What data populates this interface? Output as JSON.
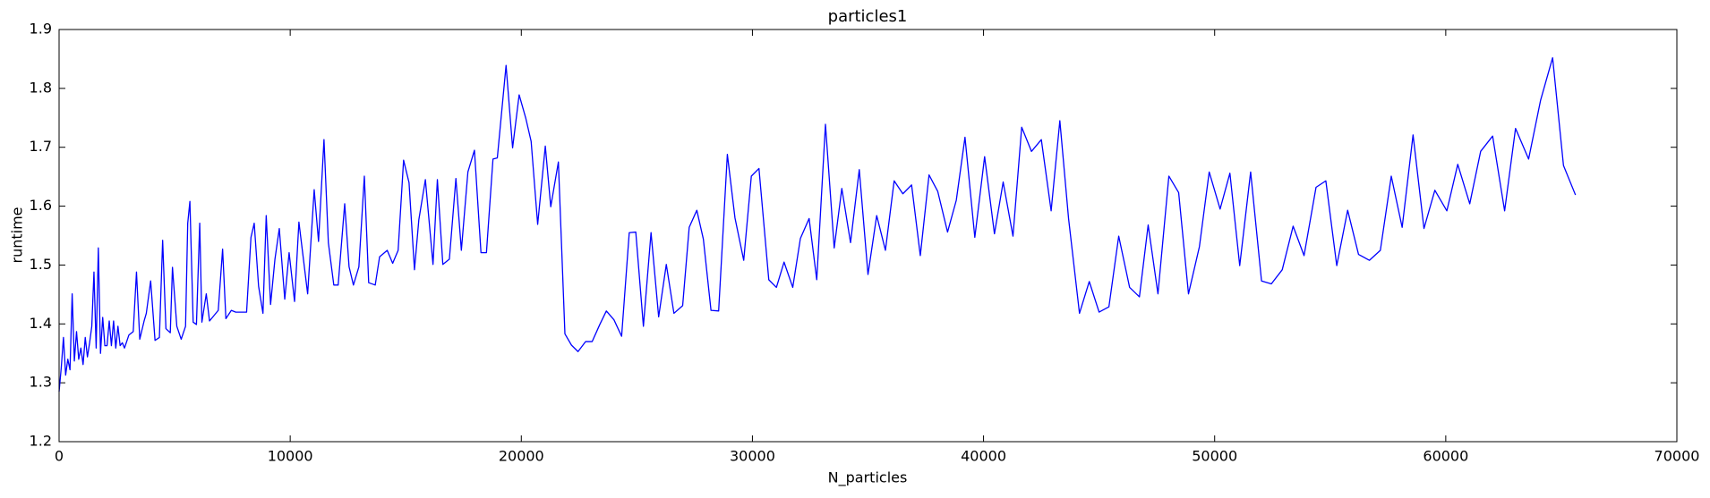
{
  "chart_data": {
    "type": "line",
    "title": "particles1",
    "xlabel": "N_particles",
    "ylabel": "runtime",
    "color": "#0000ff",
    "xlim": [
      0,
      70000
    ],
    "ylim": [
      1.2,
      1.9
    ],
    "xticks": [
      0,
      10000,
      20000,
      30000,
      40000,
      50000,
      60000,
      70000
    ],
    "yticks": [
      1.2,
      1.3,
      1.4,
      1.5,
      1.6,
      1.7,
      1.8,
      1.9
    ],
    "grid": false,
    "x": [
      0,
      94,
      189,
      283,
      377,
      472,
      566,
      660,
      755,
      849,
      943,
      1038,
      1132,
      1226,
      1321,
      1415,
      1509,
      1604,
      1698,
      1792,
      1887,
      1981,
      2075,
      2170,
      2264,
      2358,
      2453,
      2547,
      2641,
      2736,
      2830,
      3019,
      3208,
      3349,
      3491,
      3679,
      3774,
      3962,
      4151,
      4340,
      4481,
      4623,
      4811,
      4906,
      5094,
      5283,
      5472,
      5566,
      5660,
      5802,
      5943,
      6085,
      6179,
      6368,
      6509,
      6887,
      7075,
      7217,
      7453,
      7642,
      7830,
      8113,
      8302,
      8443,
      8632,
      8821,
      8962,
      9151,
      9340,
      9528,
      9764,
      9953,
      10189,
      10377,
      10755,
      11038,
      11226,
      11462,
      11651,
      11887,
      12075,
      12358,
      12547,
      12736,
      12972,
      13208,
      13396,
      13679,
      13868,
      14198,
      14434,
      14670,
      14906,
      15142,
      15377,
      15566,
      15849,
      16179,
      16368,
      16604,
      16887,
      17170,
      17406,
      17689,
      17972,
      18255,
      18491,
      18774,
      18962,
      19340,
      19623,
      19906,
      20189,
      20425,
      20708,
      21038,
      21274,
      21604,
      21887,
      22170,
      22453,
      22783,
      23066,
      23396,
      23679,
      24009,
      24340,
      24670,
      24953,
      25283,
      25613,
      25943,
      26274,
      26604,
      26981,
      27264,
      27594,
      27877,
      28208,
      28538,
      28915,
      29245,
      29623,
      29953,
      30283,
      30708,
      31038,
      31368,
      31745,
      32075,
      32453,
      32783,
      33160,
      33538,
      33868,
      34245,
      34623,
      35000,
      35377,
      35755,
      36132,
      36509,
      36887,
      37264,
      37642,
      38019,
      38443,
      38821,
      39198,
      39623,
      40047,
      40472,
      40849,
      41274,
      41651,
      42075,
      42500,
      42925,
      43302,
      43679,
      44151,
      44575,
      45000,
      45425,
      45849,
      46321,
      46745,
      47123,
      47547,
      48019,
      48443,
      48868,
      49340,
      49764,
      50236,
      50660,
      51085,
      51557,
      52028,
      52453,
      52925,
      53396,
      53868,
      54387,
      54811,
      55283,
      55755,
      56226,
      56698,
      57170,
      57642,
      58113,
      58585,
      59057,
      59528,
      60047,
      60519,
      61038,
      61509,
      62028,
      62547,
      63019,
      63585,
      64104,
      64623,
      65094,
      65613
    ],
    "values": [
      1.285,
      1.326,
      1.377,
      1.313,
      1.34,
      1.322,
      1.451,
      1.337,
      1.387,
      1.34,
      1.359,
      1.331,
      1.377,
      1.344,
      1.368,
      1.396,
      1.488,
      1.359,
      1.529,
      1.35,
      1.411,
      1.363,
      1.363,
      1.405,
      1.363,
      1.405,
      1.359,
      1.396,
      1.363,
      1.368,
      1.359,
      1.381,
      1.387,
      1.488,
      1.374,
      1.405,
      1.418,
      1.473,
      1.372,
      1.377,
      1.542,
      1.392,
      1.385,
      1.496,
      1.396,
      1.374,
      1.396,
      1.571,
      1.608,
      1.403,
      1.399,
      1.571,
      1.403,
      1.451,
      1.405,
      1.423,
      1.527,
      1.409,
      1.423,
      1.42,
      1.42,
      1.42,
      1.547,
      1.571,
      1.464,
      1.418,
      1.584,
      1.433,
      1.51,
      1.562,
      1.442,
      1.521,
      1.438,
      1.573,
      1.451,
      1.628,
      1.54,
      1.713,
      1.538,
      1.466,
      1.466,
      1.604,
      1.497,
      1.466,
      1.497,
      1.651,
      1.47,
      1.466,
      1.514,
      1.525,
      1.503,
      1.525,
      1.678,
      1.64,
      1.492,
      1.577,
      1.645,
      1.501,
      1.645,
      1.501,
      1.51,
      1.647,
      1.525,
      1.658,
      1.695,
      1.521,
      1.521,
      1.68,
      1.682,
      1.839,
      1.699,
      1.789,
      1.75,
      1.71,
      1.569,
      1.702,
      1.599,
      1.675,
      1.383,
      1.364,
      1.353,
      1.37,
      1.37,
      1.399,
      1.422,
      1.407,
      1.379,
      1.555,
      1.556,
      1.396,
      1.555,
      1.412,
      1.501,
      1.418,
      1.431,
      1.564,
      1.593,
      1.544,
      1.423,
      1.422,
      1.688,
      1.58,
      1.508,
      1.651,
      1.664,
      1.475,
      1.462,
      1.505,
      1.462,
      1.545,
      1.579,
      1.475,
      1.739,
      1.529,
      1.63,
      1.538,
      1.662,
      1.484,
      1.584,
      1.525,
      1.643,
      1.621,
      1.636,
      1.516,
      1.653,
      1.625,
      1.556,
      1.61,
      1.717,
      1.547,
      1.684,
      1.553,
      1.641,
      1.549,
      1.734,
      1.693,
      1.713,
      1.592,
      1.745,
      1.579,
      1.418,
      1.472,
      1.42,
      1.429,
      1.549,
      1.462,
      1.446,
      1.568,
      1.451,
      1.651,
      1.623,
      1.451,
      1.531,
      1.658,
      1.595,
      1.656,
      1.499,
      1.658,
      1.473,
      1.468,
      1.492,
      1.566,
      1.516,
      1.632,
      1.643,
      1.499,
      1.593,
      1.518,
      1.508,
      1.525,
      1.651,
      1.564,
      1.721,
      1.562,
      1.627,
      1.592,
      1.671,
      1.604,
      1.693,
      1.719,
      1.592,
      1.732,
      1.68,
      1.78,
      1.852,
      1.669,
      1.619
    ]
  }
}
